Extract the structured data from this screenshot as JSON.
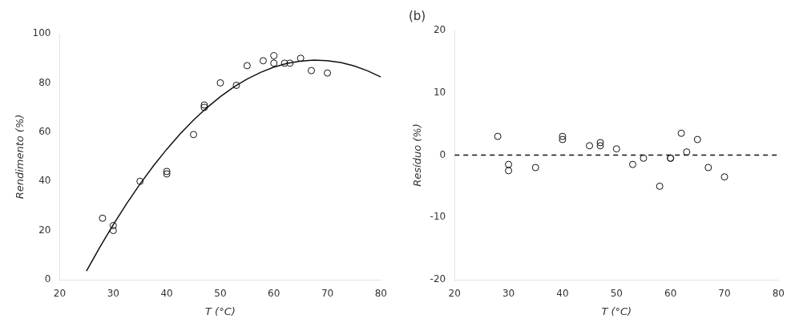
{
  "chart_data": [
    {
      "type": "scatter",
      "xlabel": "T (°C)",
      "ylabel": "Rendimento (%)",
      "xlim": [
        20,
        80
      ],
      "ylim": [
        0,
        100
      ],
      "xticks": [
        20,
        30,
        40,
        50,
        60,
        70,
        80
      ],
      "yticks": [
        0,
        20,
        40,
        60,
        80,
        100
      ],
      "grid": false,
      "series": [
        {
          "type": "line",
          "color": "#111111",
          "x": [
            25,
            27.5,
            30,
            32.5,
            35,
            37.5,
            40,
            42.5,
            45,
            47.5,
            50,
            52.5,
            55,
            57.5,
            60,
            62.5,
            65,
            67.5,
            70,
            72.5,
            75,
            77.5,
            80
          ],
          "values": [
            3.51,
            13.22,
            22.36,
            30.9,
            38.87,
            46.25,
            53.05,
            59.26,
            64.89,
            69.93,
            74.39,
            78.27,
            81.56,
            84.26,
            86.39,
            87.93,
            88.88,
            89.25,
            89.04,
            88.25,
            86.86,
            84.9,
            82.35
          ]
        },
        {
          "type": "scatter",
          "marker": "circle",
          "color": "#111111",
          "x": [
            28,
            30,
            30,
            35,
            40,
            40,
            45,
            47,
            47,
            50,
            53,
            55,
            58,
            60,
            60,
            62,
            63,
            65,
            67,
            70
          ],
          "values": [
            25,
            20,
            22,
            40,
            43,
            44,
            59,
            71,
            70,
            80,
            79,
            87,
            89,
            91,
            88,
            88,
            88,
            90,
            85,
            84
          ]
        }
      ]
    },
    {
      "type": "scatter",
      "annotations": [
        "(b)"
      ],
      "xlabel": "T (°C)",
      "ylabel": "Resíduo (%)",
      "xlim": [
        20,
        80
      ],
      "ylim": [
        -20,
        20
      ],
      "xticks": [
        20,
        30,
        40,
        50,
        60,
        70,
        80
      ],
      "yticks": [
        -20,
        -10,
        0,
        10,
        20
      ],
      "grid": false,
      "series": [
        {
          "type": "line",
          "line_style": "dashed",
          "color": "#111111",
          "x": [
            20,
            80
          ],
          "values": [
            0,
            0
          ]
        },
        {
          "type": "scatter",
          "marker": "circle",
          "color": "#111111",
          "x": [
            28,
            30,
            30,
            35,
            40,
            40,
            45,
            47,
            47,
            50,
            53,
            55,
            58,
            60,
            60,
            62,
            63,
            65,
            67,
            70
          ],
          "values": [
            3.0,
            -2.5,
            -1.5,
            -2.0,
            2.5,
            3.0,
            1.5,
            2.0,
            1.5,
            1.0,
            -1.5,
            -0.5,
            -5.0,
            -0.5,
            -0.5,
            3.5,
            0.5,
            2.5,
            -2.0,
            -3.5
          ]
        }
      ]
    }
  ]
}
